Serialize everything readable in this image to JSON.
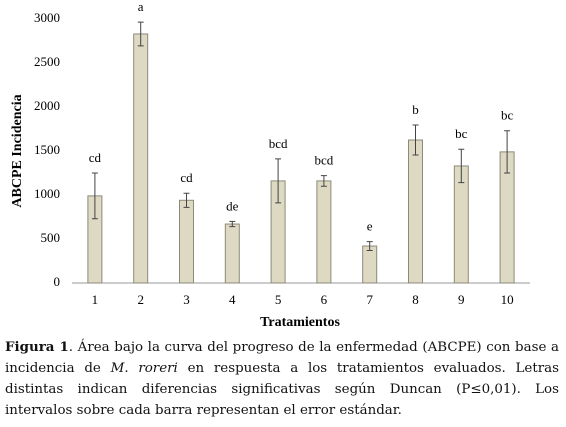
{
  "chart_data": {
    "type": "bar",
    "ylabel": "ABCPE Incidencia",
    "xlabel": "Tratamientos",
    "categories": [
      "1",
      "2",
      "3",
      "4",
      "5",
      "6",
      "7",
      "8",
      "9",
      "10"
    ],
    "values": [
      990,
      2830,
      940,
      670,
      1160,
      1160,
      420,
      1625,
      1330,
      1490
    ],
    "errors": [
      260,
      135,
      80,
      30,
      250,
      60,
      50,
      170,
      190,
      240
    ],
    "annotations": [
      "cd",
      "a",
      "cd",
      "de",
      "bcd",
      "bcd",
      "e",
      "b",
      "bc",
      "bc"
    ],
    "color": "#ddd9c3",
    "edge_color": "#8c8a78",
    "ylim": [
      0,
      3000
    ],
    "yticks": [
      0,
      500,
      1000,
      1500,
      2000,
      2500,
      3000
    ],
    "grid": false
  },
  "caption": {
    "label": "Figura 1",
    "text_1": ". Área bajo la curva del progreso de la enfermedad (ABCPE) con base a incidencia de ",
    "species": "M. roreri",
    "text_2": " en respuesta a los tratamientos evaluados. Letras distintas indican diferencias significativas según Duncan (P≤0,01). Los intervalos sobre cada barra representan el error estándar."
  }
}
